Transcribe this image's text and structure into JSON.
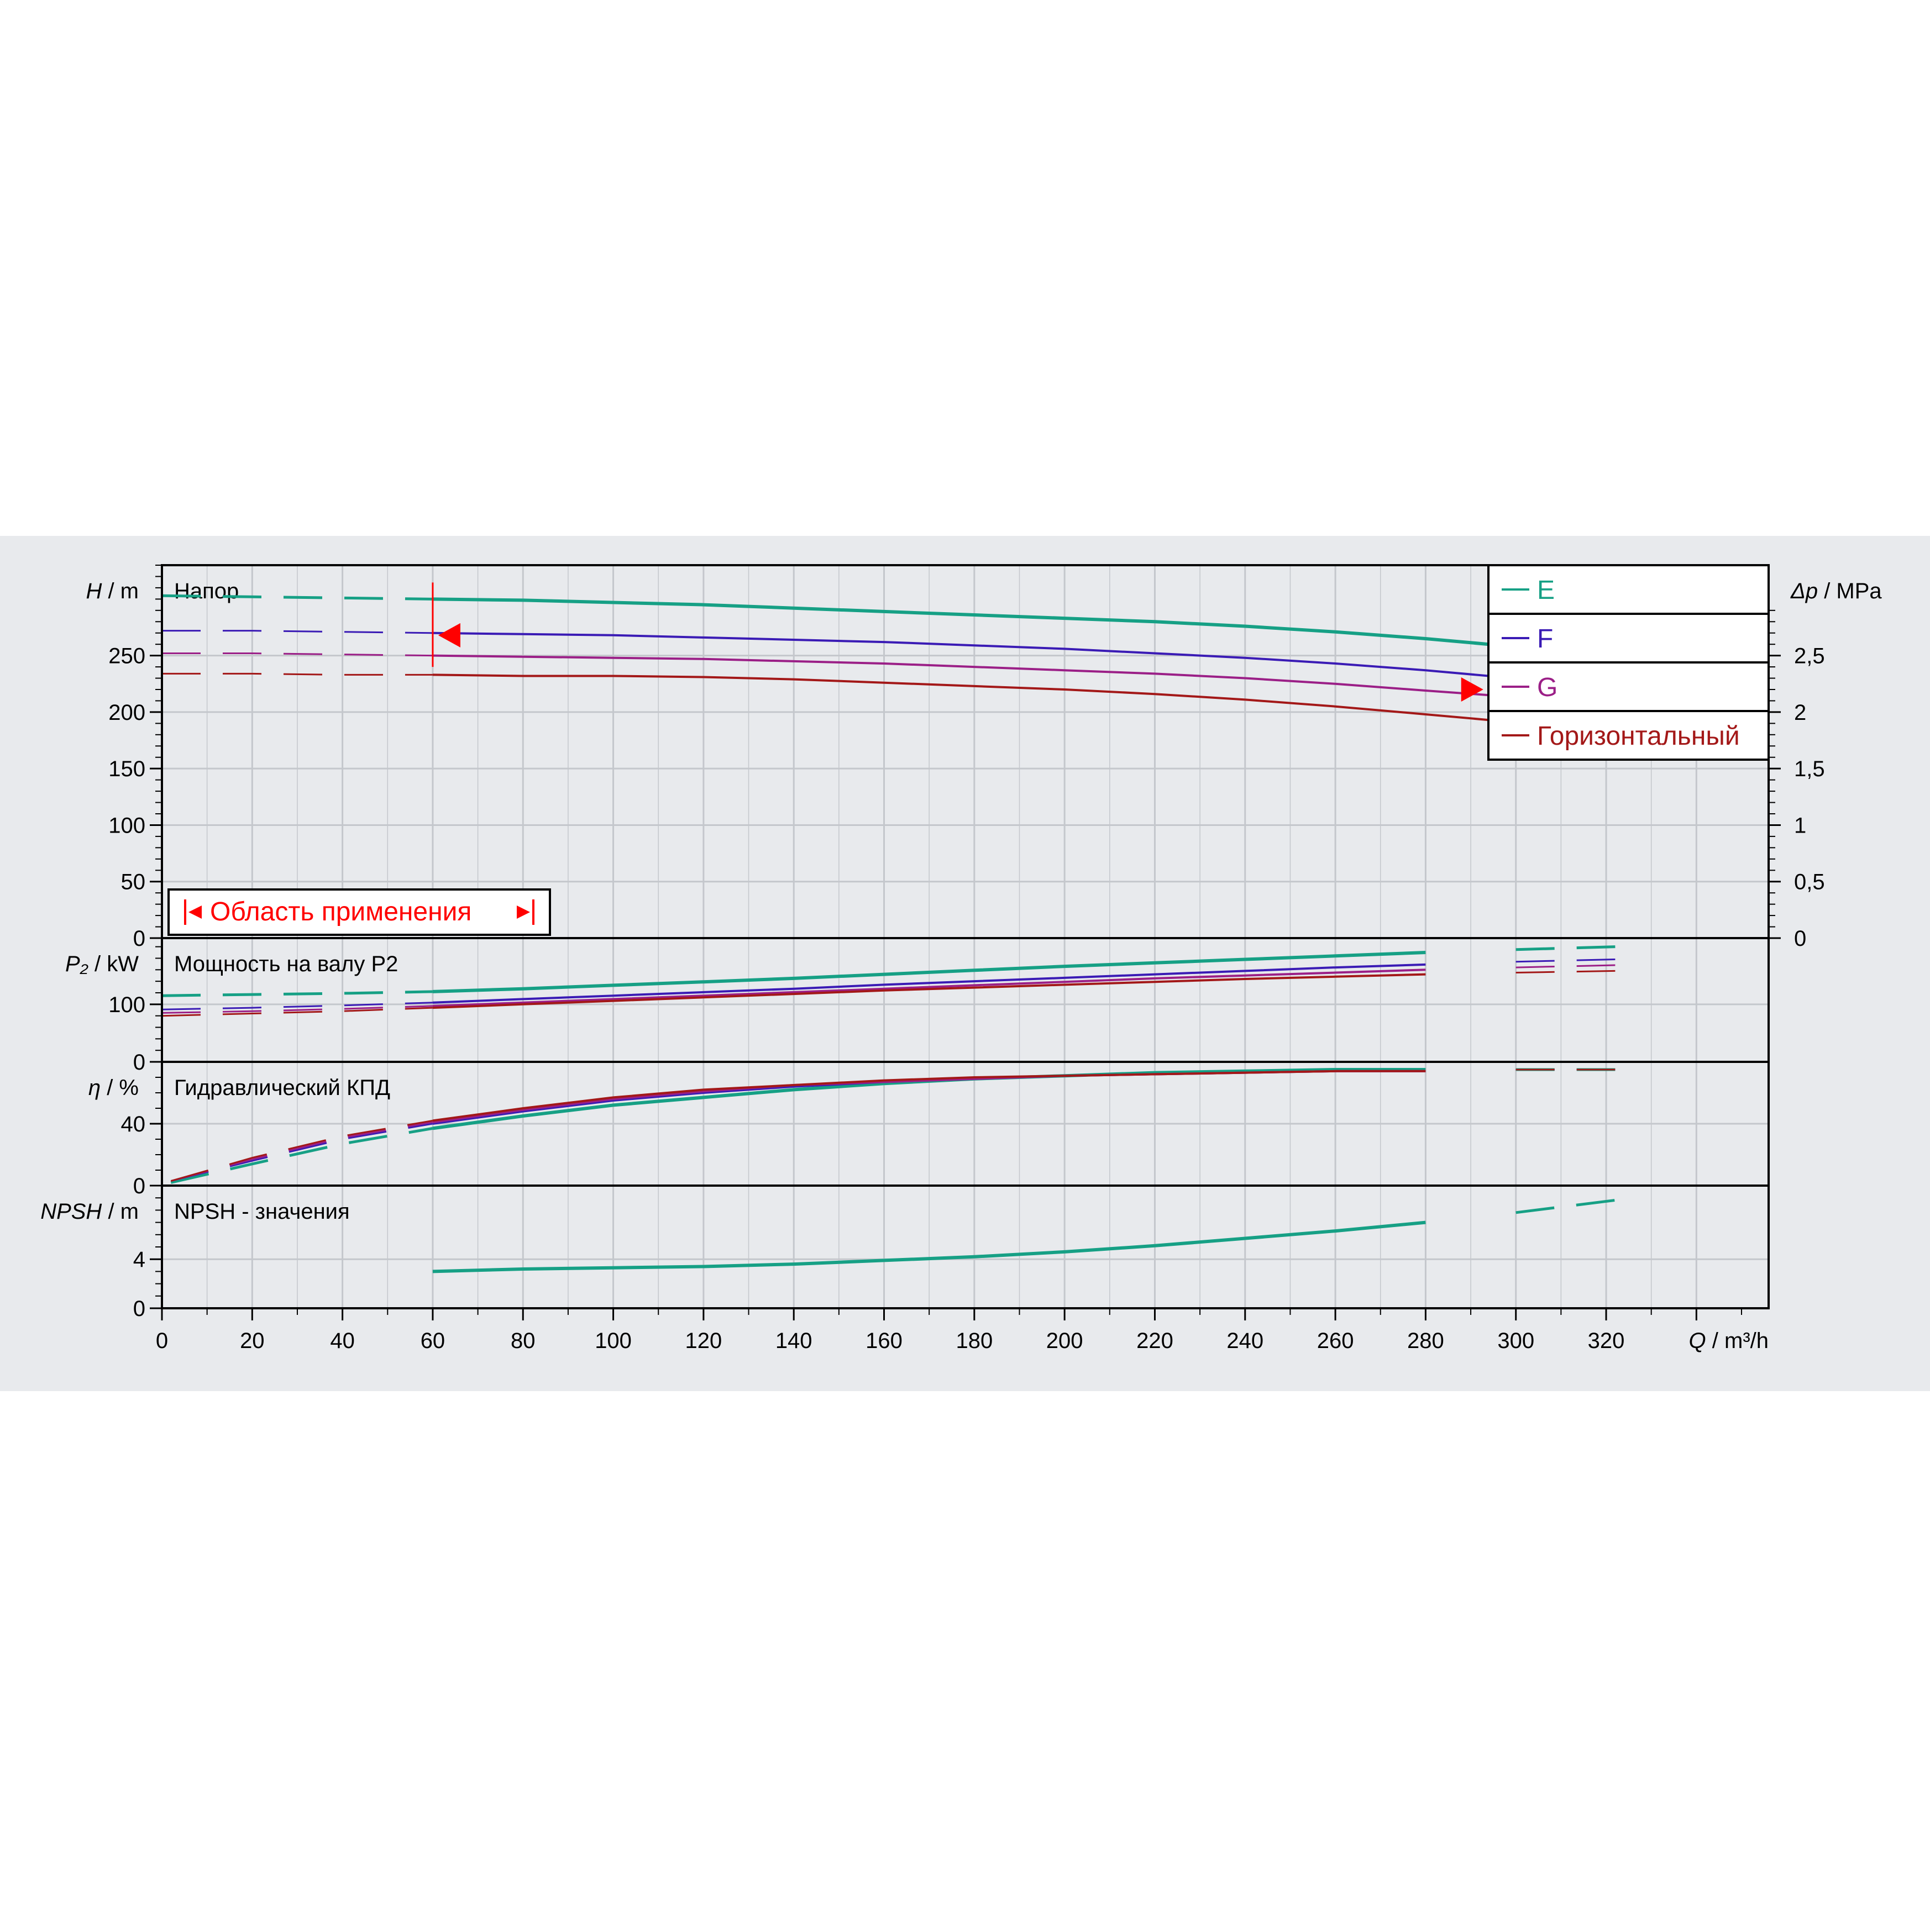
{
  "colors": {
    "E": "#16a085",
    "F": "#3a1bb5",
    "G": "#9b1f87",
    "Горизонтальный": "#a31818",
    "accent_red": "#ff0000",
    "grid": "#c4c7cc",
    "panel_bg": "#e8eaed"
  },
  "chart_data": {
    "type": "line",
    "x_axis": {
      "label_symbol": "Q",
      "label_unit": " / m³/h",
      "range": [
        0,
        356
      ],
      "ticks": [
        0,
        20,
        40,
        60,
        80,
        100,
        120,
        140,
        160,
        180,
        200,
        220,
        240,
        260,
        280,
        300,
        320
      ]
    },
    "legend": {
      "placement": "top-right",
      "entries": [
        {
          "key": "E",
          "label": "E"
        },
        {
          "key": "F",
          "label": "F"
        },
        {
          "key": "G",
          "label": "G"
        },
        {
          "key": "Горизонтальный",
          "label": "Горизонтальный"
        }
      ]
    },
    "application_range": {
      "label": "Область применения",
      "q_min": 60,
      "q_max": 294
    },
    "panels": [
      {
        "id": "head",
        "title": "Напор",
        "y_symbol": "H",
        "y_unit": " / m",
        "ylim": [
          0,
          330
        ],
        "yticks": [
          0,
          50,
          100,
          150,
          200,
          250
        ],
        "right_axis": {
          "symbol": "Δp",
          "unit": " / MPa",
          "ratio": 0.01,
          "ticks": [
            "0",
            "0,5",
            "1",
            "1,5",
            "2",
            "2,5"
          ],
          "tick_values": [
            0,
            0.5,
            1,
            1.5,
            2,
            2.5
          ]
        },
        "series": [
          {
            "key": "E",
            "x": [
              0,
              20,
              40,
              60,
              80,
              100,
              120,
              140,
              160,
              180,
              200,
              220,
              240,
              260,
              280,
              294
            ],
            "y": [
              303,
              302,
              301,
              300,
              299,
              297,
              295,
              292,
              289,
              286,
              283,
              280,
              276,
              271,
              265,
              260
            ]
          },
          {
            "key": "F",
            "x": [
              0,
              20,
              40,
              60,
              80,
              100,
              120,
              140,
              160,
              180,
              200,
              220,
              240,
              260,
              280,
              294
            ],
            "y": [
              272,
              272,
              271,
              270,
              269,
              268,
              266,
              264,
              262,
              259,
              256,
              252,
              248,
              243,
              237,
              232
            ]
          },
          {
            "key": "G",
            "x": [
              0,
              20,
              40,
              60,
              80,
              100,
              120,
              140,
              160,
              180,
              200,
              220,
              240,
              260,
              280,
              294
            ],
            "y": [
              252,
              252,
              251,
              250,
              249,
              248,
              247,
              245,
              243,
              240,
              237,
              234,
              230,
              225,
              219,
              215
            ]
          },
          {
            "key": "Горизонтальный",
            "x": [
              0,
              20,
              40,
              60,
              80,
              100,
              120,
              140,
              160,
              180,
              200,
              220,
              240,
              260,
              280,
              294
            ],
            "y": [
              234,
              234,
              233,
              233,
              232,
              232,
              231,
              229,
              226,
              223,
              220,
              216,
              211,
              205,
              198,
              193
            ]
          }
        ]
      },
      {
        "id": "power",
        "title": "Мощность на валу P2",
        "y_symbol": "P₂",
        "y_unit": " / kW",
        "ylim": [
          0,
          215
        ],
        "yticks": [
          0,
          100
        ],
        "series": [
          {
            "key": "E",
            "x": [
              0,
              20,
              40,
              60,
              80,
              100,
              120,
              140,
              160,
              180,
              200,
              220,
              240,
              260,
              280,
              300,
              322
            ],
            "y": [
              115,
              117,
              119,
              122,
              127,
              133,
              139,
              145,
              152,
              159,
              166,
              172,
              178,
              184,
              190,
              195,
              200
            ]
          },
          {
            "key": "F",
            "x": [
              0,
              20,
              40,
              60,
              80,
              100,
              120,
              140,
              160,
              180,
              200,
              220,
              240,
              260,
              280,
              300,
              322
            ],
            "y": [
              91,
              94,
              98,
              103,
              109,
              115,
              121,
              127,
              134,
              140,
              146,
              152,
              158,
              164,
              169,
              174,
              178
            ]
          },
          {
            "key": "G",
            "x": [
              0,
              20,
              40,
              60,
              80,
              100,
              120,
              140,
              160,
              180,
              200,
              220,
              240,
              260,
              280,
              300,
              322
            ],
            "y": [
              85,
              88,
              92,
              97,
              103,
              109,
              115,
              121,
              127,
              133,
              139,
              145,
              150,
              155,
              160,
              164,
              168
            ]
          },
          {
            "key": "Горизонтальный",
            "x": [
              0,
              20,
              40,
              60,
              80,
              100,
              120,
              140,
              160,
              180,
              200,
              220,
              240,
              260,
              280,
              300,
              322
            ],
            "y": [
              80,
              84,
              88,
              94,
              100,
              106,
              112,
              118,
              124,
              129,
              134,
              139,
              144,
              148,
              152,
              155,
              158
            ]
          }
        ]
      },
      {
        "id": "efficiency",
        "title": "Гидравлический КПД",
        "y_symbol": "η",
        "y_unit": " / %",
        "ylim": [
          0,
          80
        ],
        "yticks": [
          0,
          40
        ],
        "series": [
          {
            "key": "E",
            "x": [
              2,
              20,
              40,
              60,
              80,
              100,
              120,
              140,
              160,
              180,
              200,
              220,
              240,
              260,
              280,
              300,
              322
            ],
            "y": [
              2,
              14,
              27,
              37,
              45,
              52,
              57,
              62,
              66,
              69,
              71,
              73,
              74,
              75,
              75,
              75,
              75
            ]
          },
          {
            "key": "F",
            "x": [
              2,
              20,
              40,
              60,
              80,
              100,
              120,
              140,
              160,
              180,
              200,
              220,
              240,
              260,
              280,
              300,
              322
            ],
            "y": [
              3,
              16,
              30,
              40,
              48,
              55,
              60,
              64,
              67,
              69,
              71,
              72,
              73,
              74,
              74,
              75,
              75
            ]
          },
          {
            "key": "G",
            "x": [
              2,
              20,
              40,
              60,
              80,
              100,
              120,
              140,
              160,
              180,
              200,
              220,
              240,
              260,
              280,
              300,
              322
            ],
            "y": [
              3,
              17,
              31,
              41,
              49,
              56,
              61,
              65,
              67,
              69,
              71,
              72,
              73,
              74,
              74,
              75,
              75
            ]
          },
          {
            "key": "Горизонтальный",
            "x": [
              2,
              20,
              40,
              60,
              80,
              100,
              120,
              140,
              160,
              180,
              200,
              220,
              240,
              260,
              280,
              300,
              322
            ],
            "y": [
              3,
              18,
              32,
              42,
              50,
              57,
              62,
              65,
              68,
              70,
              71,
              72,
              73,
              74,
              74,
              75,
              75
            ]
          }
        ]
      },
      {
        "id": "npsh",
        "title": "NPSH - значения",
        "y_symbol": "NPSH",
        "y_unit": " / m",
        "ylim": [
          0,
          10
        ],
        "yticks": [
          0,
          4
        ],
        "series": [
          {
            "key": "E",
            "x": [
              60,
              80,
              100,
              120,
              140,
              160,
              180,
              200,
              220,
              240,
              260,
              280,
              300,
              324
            ],
            "y": [
              3.0,
              3.2,
              3.3,
              3.4,
              3.6,
              3.9,
              4.2,
              4.6,
              5.1,
              5.7,
              6.3,
              7.0,
              7.8,
              8.9
            ]
          }
        ]
      }
    ]
  }
}
